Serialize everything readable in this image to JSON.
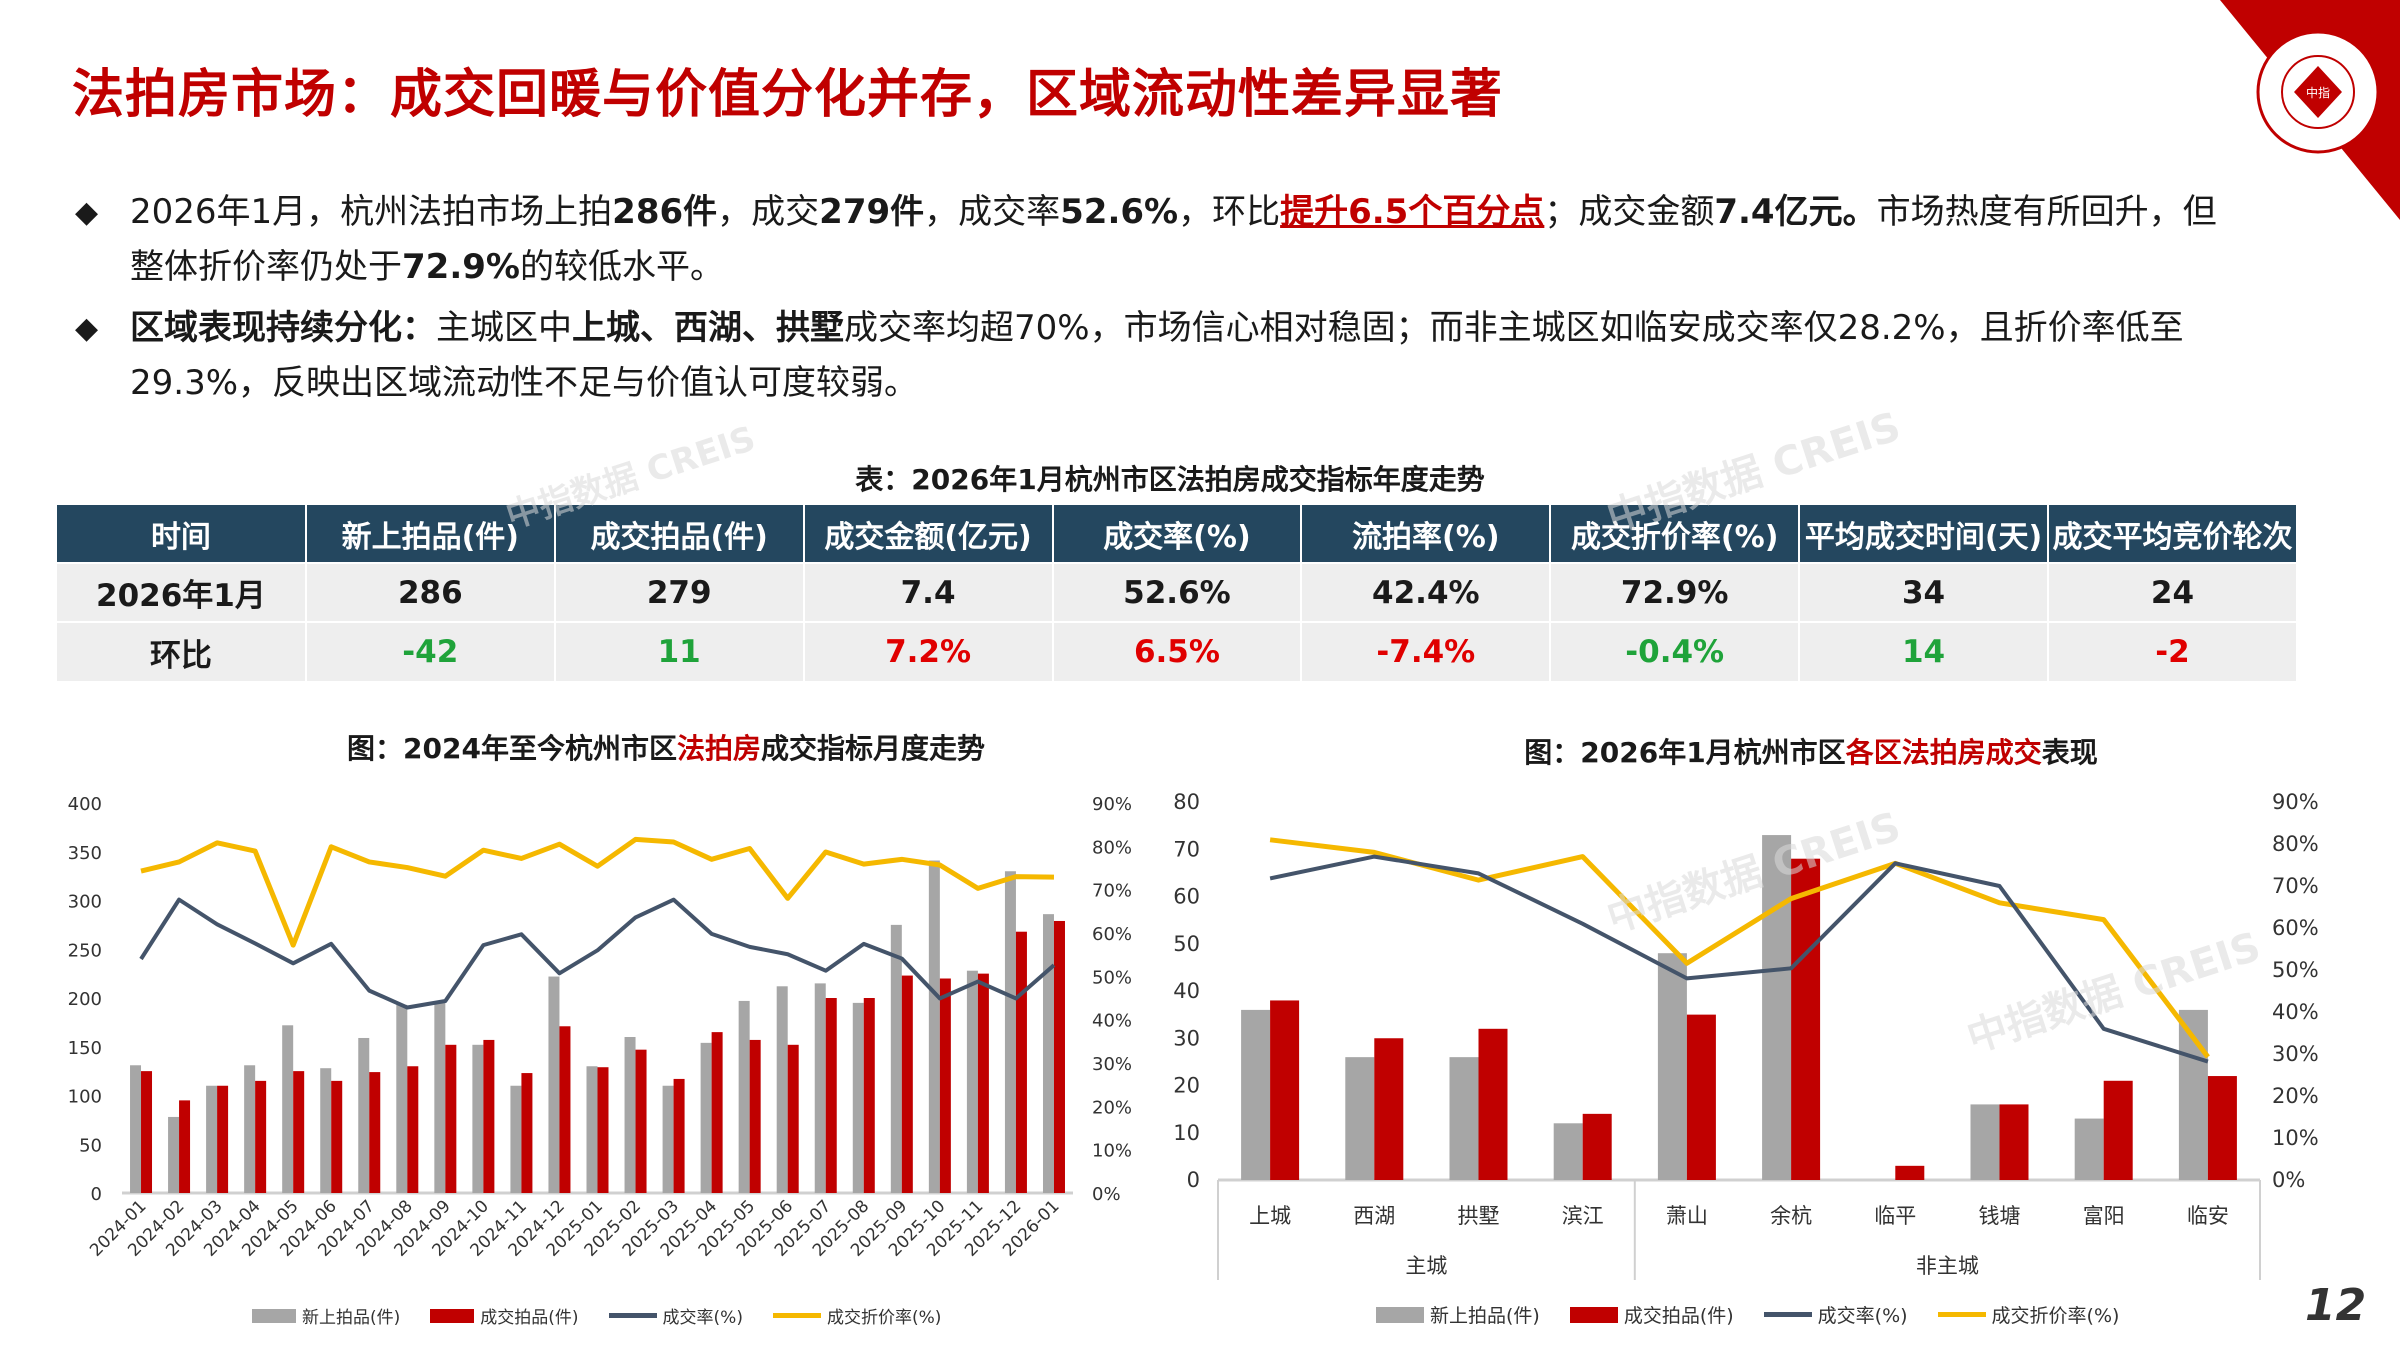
{
  "title": "法拍房市场：成交回暖与价值分化并存，区域流动性差异显著",
  "logo": {
    "text": "CHINA INDEX ACADEMY 中指研究院",
    "color": "#c00000"
  },
  "bullets": [
    [
      {
        "t": "2026年1月，杭州法拍市场上拍",
        "s": "n"
      },
      {
        "t": "286件",
        "s": "b"
      },
      {
        "t": "，成交",
        "s": "n"
      },
      {
        "t": "279件",
        "s": "b"
      },
      {
        "t": "，成交率",
        "s": "n"
      },
      {
        "t": "52.6%",
        "s": "b"
      },
      {
        "t": "，环比",
        "s": "n"
      },
      {
        "t": "提升6.5个百分点",
        "s": "r"
      },
      {
        "t": "；成交金额",
        "s": "n"
      },
      {
        "t": "7.4亿元。",
        "s": "b"
      },
      {
        "t": "市场热度有所回升，但整体折价率仍处于",
        "s": "n"
      },
      {
        "t": "72.9%",
        "s": "b"
      },
      {
        "t": "的较低水平。",
        "s": "n"
      }
    ],
    [
      {
        "t": "区域表现持续分化：",
        "s": "b"
      },
      {
        "t": "主城区中",
        "s": "n"
      },
      {
        "t": "上城、西湖、拱墅",
        "s": "b"
      },
      {
        "t": "成交率均超70%，市场信心相对稳固；而非主城区如临安成交率仅28.2%，且折价率低至29.3%，反映出区域流动性不足与价值认可度较弱。",
        "s": "n"
      }
    ]
  ],
  "table": {
    "title": "表：2026年1月杭州市区法拍房成交指标年度走势",
    "headers": [
      "时间",
      "新上拍品(件)",
      "成交拍品(件)",
      "成交金额(亿元)",
      "成交率(%)",
      "流拍率(%)",
      "成交折价率(%)",
      "平均成交时间(天)",
      "成交平均竞价轮次"
    ],
    "rows": [
      [
        "2026年1月",
        "286",
        "279",
        "7.4",
        "52.6%",
        "42.4%",
        "72.9%",
        "34",
        "24"
      ],
      [
        "环比",
        "-42",
        "11",
        "7.2%",
        "6.5%",
        "-7.4%",
        "-0.4%",
        "14",
        "-2"
      ]
    ],
    "change_colors": [
      "",
      "g",
      "g",
      "rd",
      "rd",
      "rd",
      "g",
      "g",
      "rd"
    ]
  },
  "colors": {
    "new": "#a6a6a6",
    "deal": "#c00000",
    "rate": "#44546a",
    "discount": "#f5b800",
    "header": "#24475f",
    "up": "#1fa33a",
    "down": "#e00000"
  },
  "chart_data": [
    {
      "type": "bar+line",
      "title_parts": [
        "图：2024年至今杭州市区",
        "法拍房",
        "成交指标月度走势"
      ],
      "categories": [
        "2024-01",
        "2024-02",
        "2024-03",
        "2024-04",
        "2024-05",
        "2024-06",
        "2024-07",
        "2024-08",
        "2024-09",
        "2024-10",
        "2024-11",
        "2024-12",
        "2025-01",
        "2025-02",
        "2025-03",
        "2025-04",
        "2025-05",
        "2025-06",
        "2025-07",
        "2025-08",
        "2025-09",
        "2025-10",
        "2025-11",
        "2025-12",
        "2026-01"
      ],
      "ylim": [
        0,
        400
      ],
      "yticks": [
        0,
        50,
        100,
        150,
        200,
        250,
        300,
        350,
        400
      ],
      "y2lim": [
        0,
        90
      ],
      "y2ticks": [
        "0%",
        "10%",
        "20%",
        "30%",
        "40%",
        "50%",
        "60%",
        "70%",
        "80%",
        "90%"
      ],
      "series": [
        {
          "name": "新上拍品(件)",
          "type": "bar",
          "values": [
            131,
            78,
            110,
            131,
            172,
            128,
            159,
            193,
            195,
            152,
            110,
            222,
            130,
            160,
            110,
            154,
            197,
            212,
            215,
            195,
            275,
            341,
            228,
            330,
            286
          ]
        },
        {
          "name": "成交拍品(件)",
          "type": "bar",
          "values": [
            125,
            95,
            110,
            115,
            125,
            115,
            124,
            130,
            152,
            157,
            123,
            171,
            129,
            147,
            117,
            165,
            157,
            152,
            200,
            200,
            223,
            220,
            225,
            268,
            279
          ]
        },
        {
          "name": "成交率(%)",
          "type": "line",
          "axis": "right",
          "values": [
            54,
            67.7,
            62,
            57.6,
            53,
            57.5,
            46.7,
            42.8,
            44.3,
            57.2,
            59.7,
            50.7,
            56,
            63.6,
            67.7,
            59.8,
            56.8,
            55.1,
            51.3,
            57.5,
            54.1,
            44.9,
            48.8,
            44.9,
            52.6
          ]
        },
        {
          "name": "成交折价率(%)",
          "type": "line",
          "axis": "right",
          "values": [
            74.3,
            76.4,
            80.8,
            78.9,
            57.2,
            79.9,
            76.4,
            75.1,
            73.1,
            79.1,
            77.2,
            80.5,
            75.4,
            81.6,
            81,
            77,
            79.5,
            68,
            78.7,
            75.9,
            77,
            75.7,
            70.3,
            73,
            72.9
          ]
        }
      ],
      "legend": "bottom"
    },
    {
      "type": "bar+line",
      "title_parts": [
        "图：2026年1月杭州市区",
        "各区法拍房成交",
        "表现"
      ],
      "categories": [
        "上城",
        "西湖",
        "拱墅",
        "滨江",
        "萧山",
        "余杭",
        "临平",
        "钱塘",
        "富阳",
        "临安"
      ],
      "groups": [
        {
          "label": "主城",
          "count": 4
        },
        {
          "label": "非主城",
          "count": 6
        }
      ],
      "ylim": [
        0,
        80
      ],
      "yticks": [
        0,
        10,
        20,
        30,
        40,
        50,
        60,
        70,
        80
      ],
      "y2lim": [
        0,
        90
      ],
      "y2ticks": [
        "0%",
        "10%",
        "20%",
        "30%",
        "40%",
        "50%",
        "60%",
        "70%",
        "80%",
        "90%"
      ],
      "series": [
        {
          "name": "新上拍品(件)",
          "type": "bar",
          "values": [
            36,
            26,
            26,
            12,
            48,
            73,
            0,
            16,
            13,
            36
          ]
        },
        {
          "name": "成交拍品(件)",
          "type": "bar",
          "values": [
            38,
            30,
            32,
            14,
            35,
            68,
            3,
            16,
            21,
            22
          ]
        },
        {
          "name": "成交率(%)",
          "type": "line",
          "axis": "right",
          "values": [
            71.8,
            77,
            73,
            61,
            48,
            50.4,
            75.4,
            70,
            36,
            28.2
          ]
        },
        {
          "name": "成交折价率(%)",
          "type": "line",
          "axis": "right",
          "values": [
            81,
            78,
            71.4,
            77,
            51.6,
            67,
            75.4,
            66,
            62,
            29.3
          ]
        }
      ],
      "legend": "bottom"
    }
  ],
  "page_number": "12",
  "watermark": "中指数据 CREIS"
}
